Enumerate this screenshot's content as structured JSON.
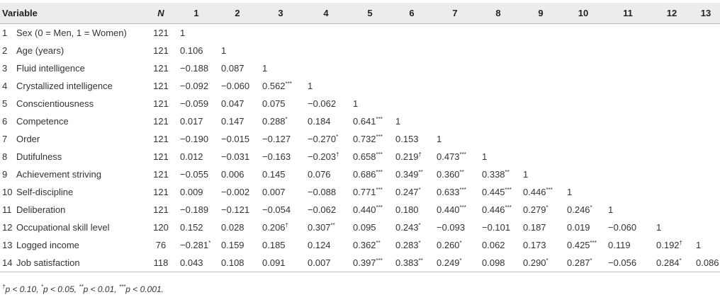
{
  "table": {
    "headers": {
      "variable": "Variable",
      "n": "N",
      "cols": [
        "1",
        "2",
        "3",
        "4",
        "5",
        "6",
        "7",
        "8",
        "9",
        "10",
        "11",
        "12",
        "13"
      ]
    },
    "rows": [
      {
        "idx": "1",
        "name": "Sex (0 = Men, 1 = Women)",
        "n": "121",
        "cells": [
          [
            "1",
            ""
          ]
        ]
      },
      {
        "idx": "2",
        "name": "Age (years)",
        "n": "121",
        "cells": [
          [
            "0.106",
            ""
          ],
          [
            "1",
            ""
          ]
        ]
      },
      {
        "idx": "3",
        "name": "Fluid intelligence",
        "n": "121",
        "cells": [
          [
            "−0.188",
            ""
          ],
          [
            "0.087",
            ""
          ],
          [
            "1",
            ""
          ]
        ]
      },
      {
        "idx": "4",
        "name": "Crystallized intelligence",
        "n": "121",
        "cells": [
          [
            "−0.092",
            ""
          ],
          [
            "−0.060",
            ""
          ],
          [
            "0.562",
            "***"
          ],
          [
            "1",
            ""
          ]
        ]
      },
      {
        "idx": "5",
        "name": "Conscientiousness",
        "n": "121",
        "cells": [
          [
            "−0.059",
            ""
          ],
          [
            "0.047",
            ""
          ],
          [
            "0.075",
            ""
          ],
          [
            "−0.062",
            ""
          ],
          [
            "1",
            ""
          ]
        ]
      },
      {
        "idx": "6",
        "name": "Competence",
        "n": "121",
        "cells": [
          [
            "0.017",
            ""
          ],
          [
            "0.147",
            ""
          ],
          [
            "0.288",
            "*"
          ],
          [
            "0.184",
            ""
          ],
          [
            "0.641",
            "***"
          ],
          [
            "1",
            ""
          ]
        ]
      },
      {
        "idx": "7",
        "name": "Order",
        "n": "121",
        "cells": [
          [
            "−0.190",
            ""
          ],
          [
            "−0.015",
            ""
          ],
          [
            "−0.127",
            ""
          ],
          [
            "−0.270",
            "*"
          ],
          [
            "0.732",
            "***"
          ],
          [
            "0.153",
            ""
          ],
          [
            "1",
            ""
          ]
        ]
      },
      {
        "idx": "8",
        "name": "Dutifulness",
        "n": "121",
        "cells": [
          [
            "0.012",
            ""
          ],
          [
            "−0.031",
            ""
          ],
          [
            "−0.163",
            ""
          ],
          [
            "−0.203",
            "†"
          ],
          [
            "0.658",
            "***"
          ],
          [
            "0.219",
            "†"
          ],
          [
            "0.473",
            "***"
          ],
          [
            "1",
            ""
          ]
        ]
      },
      {
        "idx": "9",
        "name": "Achievement striving",
        "n": "121",
        "cells": [
          [
            "−0.055",
            ""
          ],
          [
            "0.006",
            ""
          ],
          [
            "0.145",
            ""
          ],
          [
            "0.076",
            ""
          ],
          [
            "0.686",
            "***"
          ],
          [
            "0.349",
            "**"
          ],
          [
            "0.360",
            "**"
          ],
          [
            "0.338",
            "**"
          ],
          [
            "1",
            ""
          ]
        ]
      },
      {
        "idx": "10",
        "name": "Self-discipline",
        "n": "121",
        "cells": [
          [
            "0.009",
            ""
          ],
          [
            "−0.002",
            ""
          ],
          [
            "0.007",
            ""
          ],
          [
            "−0.088",
            ""
          ],
          [
            "0.771",
            "***"
          ],
          [
            "0.247",
            "*"
          ],
          [
            "0.633",
            "***"
          ],
          [
            "0.445",
            "***"
          ],
          [
            "0.446",
            "***"
          ],
          [
            "1",
            ""
          ]
        ]
      },
      {
        "idx": "11",
        "name": "Deliberation",
        "n": "121",
        "cells": [
          [
            "−0.189",
            ""
          ],
          [
            "−0.121",
            ""
          ],
          [
            "−0.054",
            ""
          ],
          [
            "−0.062",
            ""
          ],
          [
            "0.440",
            "***"
          ],
          [
            "0.180",
            ""
          ],
          [
            "0.440",
            "***"
          ],
          [
            "0.446",
            "***"
          ],
          [
            "0.279",
            "*"
          ],
          [
            "0.246",
            "*"
          ],
          [
            "1",
            ""
          ]
        ]
      },
      {
        "idx": "12",
        "name": "Occupational skill level",
        "n": "120",
        "cells": [
          [
            "0.152",
            ""
          ],
          [
            "0.028",
            ""
          ],
          [
            "0.206",
            "†"
          ],
          [
            "0.307",
            "**"
          ],
          [
            "0.095",
            ""
          ],
          [
            "0.243",
            "*"
          ],
          [
            "−0.093",
            ""
          ],
          [
            "−0.101",
            ""
          ],
          [
            "0.187",
            ""
          ],
          [
            "0.019",
            ""
          ],
          [
            "−0.060",
            ""
          ],
          [
            "1",
            ""
          ]
        ]
      },
      {
        "idx": "13",
        "name": "Logged income",
        "n": "76",
        "cells": [
          [
            "−0.281",
            "*"
          ],
          [
            "0.159",
            ""
          ],
          [
            "0.185",
            ""
          ],
          [
            "0.124",
            ""
          ],
          [
            "0.362",
            "**"
          ],
          [
            "0.283",
            "*"
          ],
          [
            "0.260",
            "*"
          ],
          [
            "0.062",
            ""
          ],
          [
            "0.173",
            ""
          ],
          [
            "0.425",
            "***"
          ],
          [
            "0.119",
            ""
          ],
          [
            "0.192",
            "†"
          ],
          [
            "1",
            ""
          ]
        ]
      },
      {
        "idx": "14",
        "name": "Job satisfaction",
        "n": "118",
        "cells": [
          [
            "0.043",
            ""
          ],
          [
            "0.108",
            ""
          ],
          [
            "0.091",
            ""
          ],
          [
            "0.007",
            ""
          ],
          [
            "0.397",
            "***"
          ],
          [
            "0.383",
            "**"
          ],
          [
            "0.249",
            "*"
          ],
          [
            "0.098",
            ""
          ],
          [
            "0.290",
            "*"
          ],
          [
            "0.287",
            "*"
          ],
          [
            "−0.056",
            ""
          ],
          [
            "0.284",
            "*"
          ],
          [
            "0.086",
            ""
          ]
        ]
      }
    ]
  },
  "note": [
    {
      "sup": "†",
      "text": "p < 0.10, "
    },
    {
      "sup": "*",
      "text": "p < 0.05, "
    },
    {
      "sup": "**",
      "text": "p < 0.01, "
    },
    {
      "sup": "***",
      "text": "p < 0.001."
    }
  ]
}
